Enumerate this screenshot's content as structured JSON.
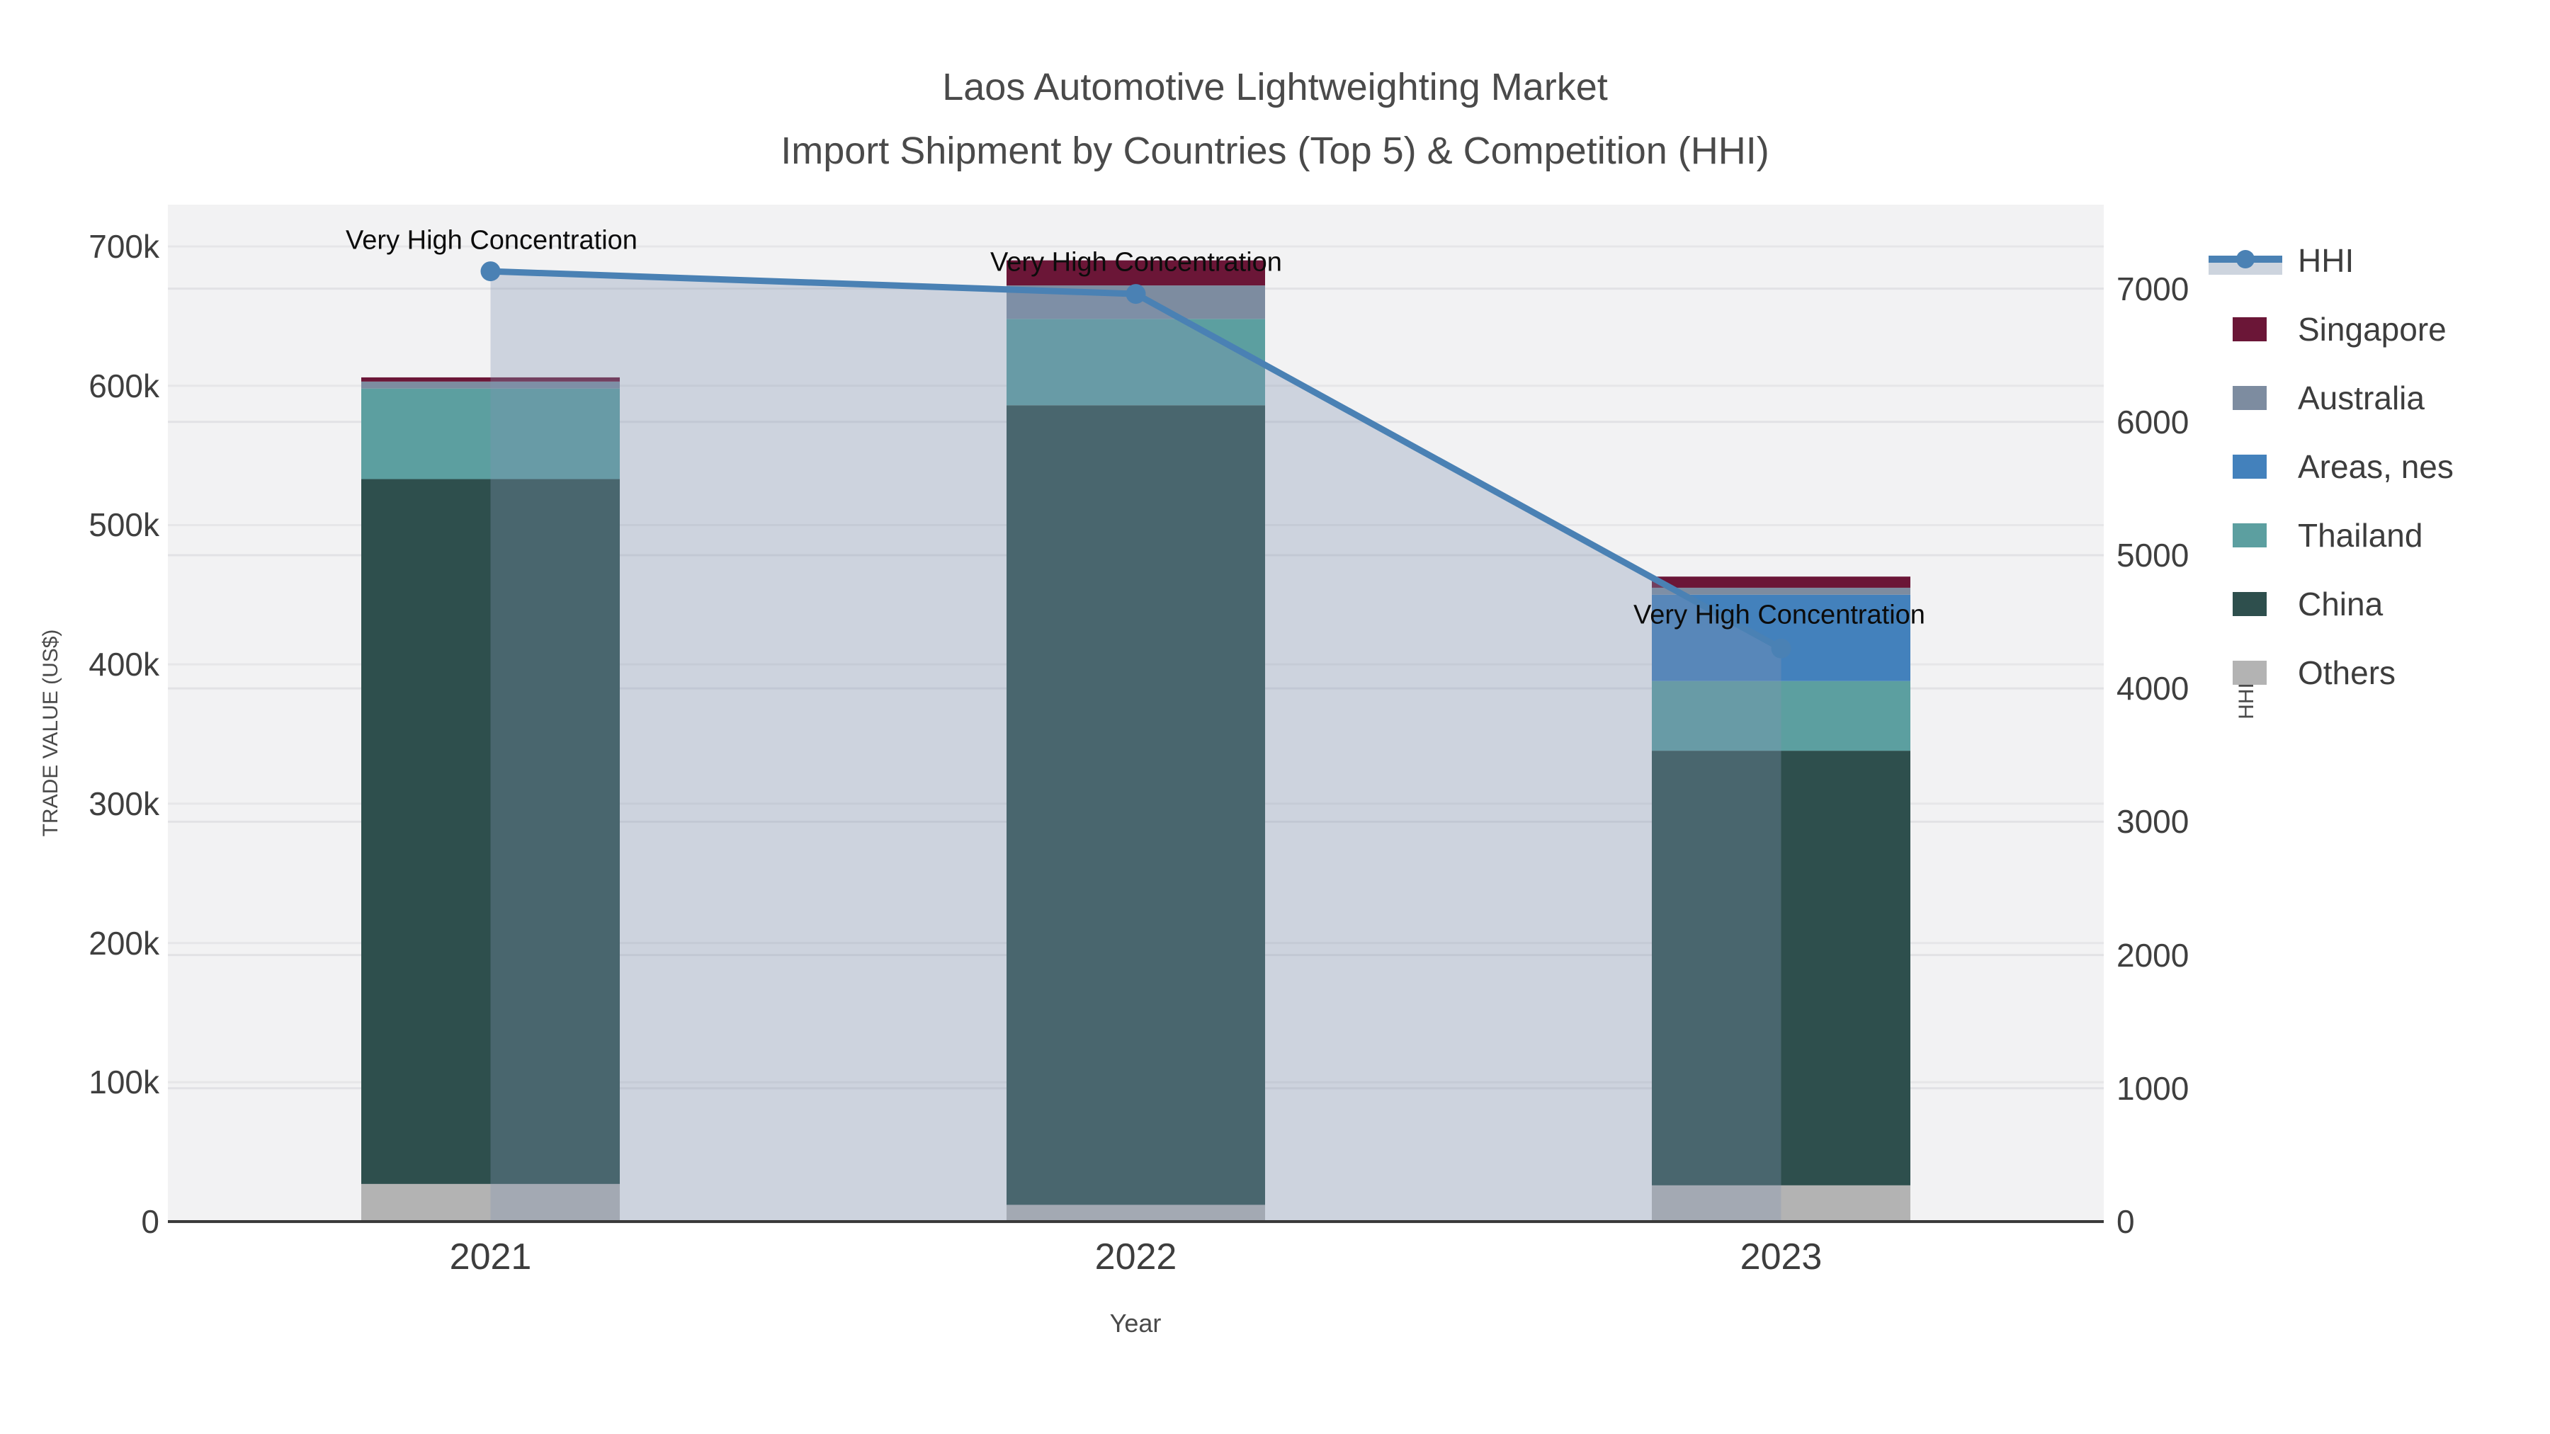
{
  "title": {
    "line1": "Laos Automotive Lightweighting Market",
    "line2": "Import Shipment by Countries (Top 5) & Competition (HHI)"
  },
  "axes": {
    "y_left": {
      "label": "TRADE VALUE (US$)",
      "tick_labels": [
        "0",
        "100k",
        "200k",
        "300k",
        "400k",
        "500k",
        "600k",
        "700k"
      ],
      "tick_values": [
        0,
        100000,
        200000,
        300000,
        400000,
        500000,
        600000,
        700000
      ]
    },
    "y_right": {
      "label": "HHI",
      "tick_labels": [
        "0",
        "1000",
        "2000",
        "3000",
        "4000",
        "5000",
        "6000",
        "7000"
      ],
      "tick_values": [
        0,
        1000,
        2000,
        3000,
        4000,
        5000,
        6000,
        7000
      ]
    },
    "x": {
      "label": "Year",
      "categories": [
        "2021",
        "2022",
        "2023"
      ]
    }
  },
  "legend": {
    "items": [
      {
        "label": "HHI",
        "type": "line",
        "color": "#4a81b4"
      },
      {
        "label": "Singapore",
        "type": "swatch",
        "color": "#6b1637"
      },
      {
        "label": "Australia",
        "type": "swatch",
        "color": "#7d8ca0"
      },
      {
        "label": "Areas, nes",
        "type": "swatch",
        "color": "#4381bc"
      },
      {
        "label": "Thailand",
        "type": "swatch",
        "color": "#5c9fa0"
      },
      {
        "label": "China",
        "type": "swatch",
        "color": "#2e4f4d"
      },
      {
        "label": "Others",
        "type": "swatch",
        "color": "#b3b3b3"
      }
    ]
  },
  "annotations": [
    {
      "text": "Very High Concentration",
      "year": "2021"
    },
    {
      "text": "Very High Concentration",
      "year": "2022"
    },
    {
      "text": "Very High Concentration",
      "year": "2023"
    }
  ],
  "chart_data": {
    "type": "bar",
    "subtype": "stacked-bar-with-line",
    "title": "Laos Automotive Lightweighting Market — Import Shipment by Countries (Top 5) & Competition (HHI)",
    "categories": [
      "2021",
      "2022",
      "2023"
    ],
    "xlabel": "Year",
    "ylabel_left": "TRADE VALUE (US$)",
    "ylabel_right": "HHI",
    "ylim_left": [
      0,
      730000
    ],
    "ylim_right": [
      0,
      7630
    ],
    "grid": true,
    "legend_position": "right",
    "bar_unit": "US$",
    "series": [
      {
        "name": "Others",
        "values": [
          27000,
          12000,
          26000
        ],
        "color": "#b3b3b3"
      },
      {
        "name": "China",
        "values": [
          506000,
          574000,
          312000
        ],
        "color": "#2e4f4d"
      },
      {
        "name": "Thailand",
        "values": [
          65000,
          62000,
          50000
        ],
        "color": "#5c9fa0"
      },
      {
        "name": "Areas, nes",
        "values": [
          0,
          0,
          62000
        ],
        "color": "#4381bc"
      },
      {
        "name": "Australia",
        "values": [
          5000,
          24000,
          5000
        ],
        "color": "#7d8ca0"
      },
      {
        "name": "Singapore",
        "values": [
          3000,
          18000,
          8000
        ],
        "color": "#6b1637"
      }
    ],
    "bar_totals": [
      606000,
      690000,
      463000
    ],
    "line": {
      "name": "HHI",
      "values": [
        7130,
        6960,
        4300
      ],
      "color": "#4a81b4",
      "fill_color": "rgba(130,150,178,0.33)",
      "markers": true
    }
  }
}
